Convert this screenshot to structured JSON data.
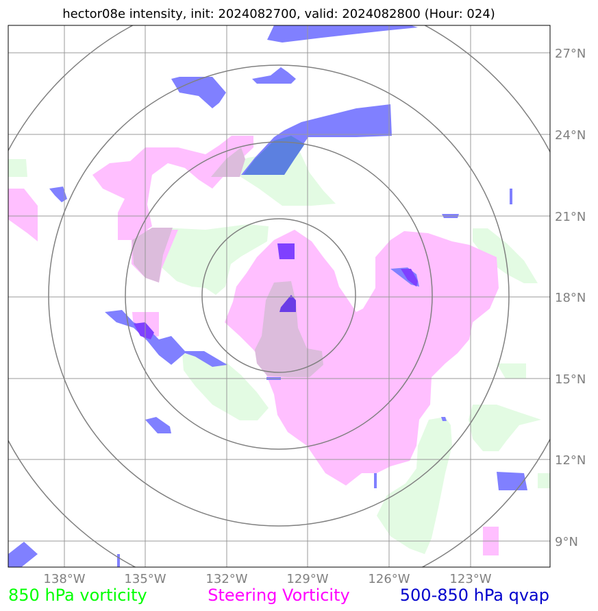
{
  "title": "hector08e intensity, init: 2024082700, valid: 2024082800 (Hour: 024)",
  "longitude_labels": [
    "138°W",
    "135°W",
    "132°W",
    "129°W",
    "126°W",
    "123°W"
  ],
  "latitude_labels": [
    "27°N",
    "24°N",
    "21°N",
    "18°N",
    "15°N",
    "12°N",
    "9°N"
  ],
  "legend": [
    {
      "label": "850 hPa vorticity",
      "color": "#00ff00"
    },
    {
      "label": "Steering Vorticity",
      "color": "#ff00ff"
    },
    {
      "label": "500-850 hPa qvap",
      "color": "#0000cc"
    }
  ],
  "colors": {
    "vorticity_850": "#e3fbe3",
    "steering_vorticity": "#ffbfff",
    "qvap": "#8080ff",
    "overlap_pink_green": "#dcbcdc",
    "overlap_blue_pink": "#7f40ff",
    "overlap_blue_green": "#5c80e0",
    "gridline": "#999999",
    "range_ring": "#808080"
  },
  "map": {
    "lon_range": [
      "140°W",
      "120.5°W"
    ],
    "lat_range": [
      "8°N",
      "28°N"
    ],
    "range_ring_count": 4
  }
}
